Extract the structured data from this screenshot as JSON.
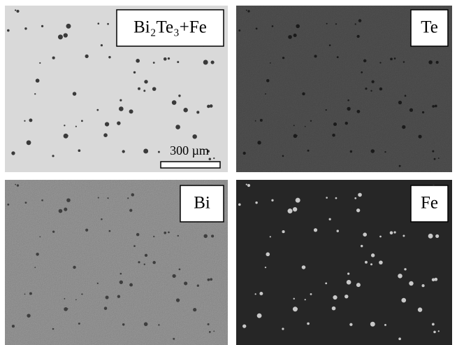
{
  "panels": [
    {
      "label": "Bi₂Te₃+Fe",
      "scale_bar": "300 µm"
    },
    {
      "label": "Te"
    },
    {
      "label": "Bi"
    },
    {
      "label": "Fe"
    }
  ]
}
